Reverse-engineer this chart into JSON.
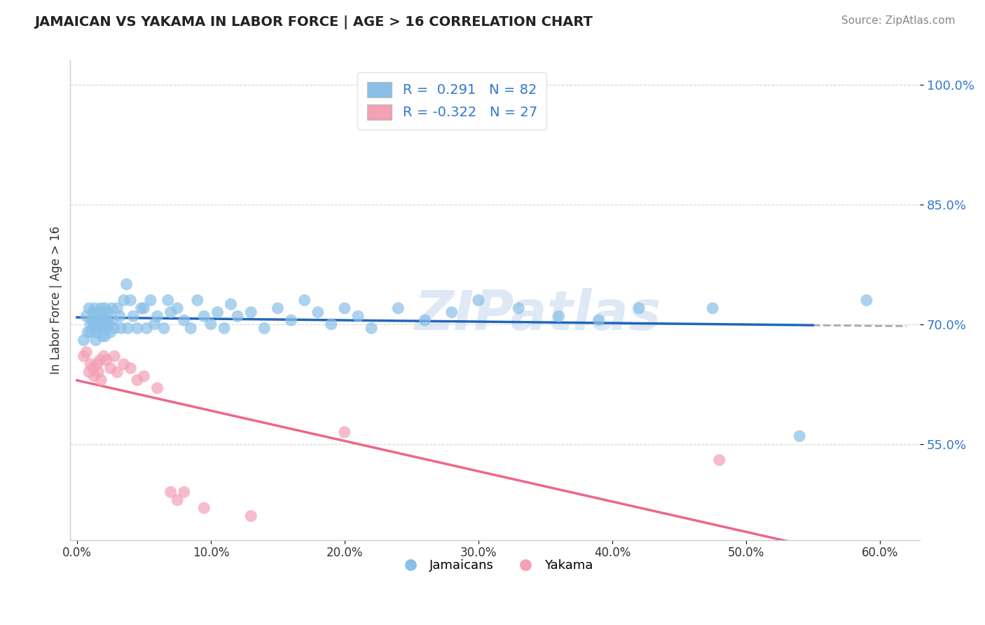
{
  "title": "JAMAICAN VS YAKAMA IN LABOR FORCE | AGE > 16 CORRELATION CHART",
  "source_text": "Source: ZipAtlas.com",
  "ylabel": "In Labor Force | Age > 16",
  "x_min": 0.0,
  "x_max": 0.6,
  "y_min": 0.43,
  "y_max": 1.03,
  "y_ticks": [
    0.55,
    0.7,
    0.85,
    1.0
  ],
  "y_tick_labels": [
    "55.0%",
    "70.0%",
    "85.0%",
    "100.0%"
  ],
  "x_ticks": [
    0.0,
    0.1,
    0.2,
    0.3,
    0.4,
    0.5,
    0.6
  ],
  "x_tick_labels": [
    "0.0%",
    "10.0%",
    "20.0%",
    "30.0%",
    "40.0%",
    "50.0%",
    "60.0%"
  ],
  "blue_color": "#89bfe8",
  "pink_color": "#f4a0b5",
  "blue_line_color": "#2266bb",
  "pink_line_color": "#ee6688",
  "dash_color": "#aaaaaa",
  "watermark": "ZIPatlas",
  "jamaicans_x": [
    0.005,
    0.007,
    0.008,
    0.009,
    0.01,
    0.01,
    0.011,
    0.012,
    0.012,
    0.013,
    0.013,
    0.014,
    0.015,
    0.015,
    0.016,
    0.016,
    0.017,
    0.017,
    0.018,
    0.018,
    0.019,
    0.02,
    0.02,
    0.021,
    0.021,
    0.022,
    0.022,
    0.023,
    0.024,
    0.025,
    0.026,
    0.027,
    0.028,
    0.03,
    0.032,
    0.033,
    0.035,
    0.037,
    0.038,
    0.04,
    0.042,
    0.045,
    0.048,
    0.05,
    0.052,
    0.055,
    0.058,
    0.06,
    0.065,
    0.068,
    0.07,
    0.075,
    0.08,
    0.085,
    0.09,
    0.095,
    0.1,
    0.105,
    0.11,
    0.115,
    0.12,
    0.13,
    0.14,
    0.15,
    0.16,
    0.17,
    0.18,
    0.19,
    0.2,
    0.21,
    0.22,
    0.24,
    0.26,
    0.28,
    0.3,
    0.33,
    0.36,
    0.39,
    0.42,
    0.475,
    0.54,
    0.59
  ],
  "jamaicans_y": [
    0.68,
    0.71,
    0.69,
    0.72,
    0.7,
    0.69,
    0.705,
    0.695,
    0.715,
    0.7,
    0.72,
    0.68,
    0.705,
    0.69,
    0.715,
    0.695,
    0.7,
    0.71,
    0.695,
    0.72,
    0.685,
    0.71,
    0.7,
    0.72,
    0.685,
    0.705,
    0.695,
    0.715,
    0.7,
    0.69,
    0.72,
    0.705,
    0.695,
    0.72,
    0.71,
    0.695,
    0.73,
    0.75,
    0.695,
    0.73,
    0.71,
    0.695,
    0.72,
    0.72,
    0.695,
    0.73,
    0.7,
    0.71,
    0.695,
    0.73,
    0.715,
    0.72,
    0.705,
    0.695,
    0.73,
    0.71,
    0.7,
    0.715,
    0.695,
    0.725,
    0.71,
    0.715,
    0.695,
    0.72,
    0.705,
    0.73,
    0.715,
    0.7,
    0.72,
    0.71,
    0.695,
    0.72,
    0.705,
    0.715,
    0.73,
    0.72,
    0.71,
    0.705,
    0.72,
    0.72,
    0.56,
    0.73
  ],
  "yakama_x": [
    0.005,
    0.007,
    0.009,
    0.01,
    0.012,
    0.013,
    0.015,
    0.016,
    0.017,
    0.018,
    0.02,
    0.022,
    0.025,
    0.028,
    0.03,
    0.035,
    0.04,
    0.045,
    0.05,
    0.06,
    0.07,
    0.075,
    0.08,
    0.095,
    0.13,
    0.2,
    0.48
  ],
  "yakama_y": [
    0.66,
    0.665,
    0.64,
    0.65,
    0.645,
    0.635,
    0.65,
    0.64,
    0.655,
    0.63,
    0.66,
    0.655,
    0.645,
    0.66,
    0.64,
    0.65,
    0.645,
    0.63,
    0.635,
    0.62,
    0.49,
    0.48,
    0.49,
    0.47,
    0.46,
    0.565,
    0.53
  ]
}
